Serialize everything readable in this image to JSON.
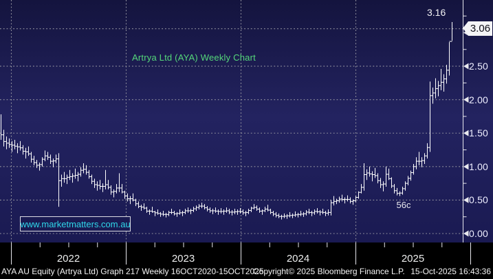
{
  "chart_data": {
    "type": "ohlc-bar",
    "title": "Artrya Ltd (AYA) Weekly Chart",
    "frequency": "Weekly",
    "x_axis": {
      "labels": [
        "2022",
        "2023",
        "2024",
        "2025"
      ],
      "grid": "dotted-vertical-at-year-start"
    },
    "y_axis": {
      "side": "right",
      "tick_labels": [
        "0.00",
        "0.50",
        "1.00",
        "1.50",
        "2.00",
        "2.50",
        "3.00"
      ],
      "minor_tick_step": 0.25,
      "range": [
        0.0,
        3.5
      ],
      "grid": "dotted-horizontal-at-major-ticks"
    },
    "last_price": 3.06,
    "high_value": 3.16,
    "low_annotation_value": 0.56,
    "bars_high_low": [
      [
        1.78,
        1.4
      ],
      [
        1.55,
        1.3
      ],
      [
        1.45,
        1.26
      ],
      [
        1.42,
        1.28
      ],
      [
        1.38,
        1.22
      ],
      [
        1.4,
        1.26
      ],
      [
        1.35,
        1.2
      ],
      [
        1.38,
        1.24
      ],
      [
        1.32,
        1.18
      ],
      [
        1.28,
        1.12
      ],
      [
        1.3,
        1.16
      ],
      [
        1.22,
        1.06
      ],
      [
        1.16,
        1.02
      ],
      [
        1.1,
        0.98
      ],
      [
        1.06,
        0.94
      ],
      [
        1.14,
        1.0
      ],
      [
        1.24,
        1.08
      ],
      [
        1.22,
        1.1
      ],
      [
        1.18,
        1.04
      ],
      [
        1.12,
        0.99
      ],
      [
        1.18,
        1.05
      ],
      [
        1.2,
        0.4
      ],
      [
        0.88,
        0.7
      ],
      [
        0.92,
        0.76
      ],
      [
        0.88,
        0.74
      ],
      [
        0.95,
        0.8
      ],
      [
        0.9,
        0.76
      ],
      [
        0.97,
        0.82
      ],
      [
        0.92,
        0.78
      ],
      [
        0.99,
        0.85
      ],
      [
        1.05,
        0.9
      ],
      [
        1.02,
        0.88
      ],
      [
        0.95,
        0.82
      ],
      [
        0.88,
        0.74
      ],
      [
        0.82,
        0.68
      ],
      [
        0.78,
        0.64
      ],
      [
        0.8,
        0.66
      ],
      [
        0.75,
        0.62
      ],
      [
        0.95,
        0.66
      ],
      [
        0.8,
        0.66
      ],
      [
        0.72,
        0.58
      ],
      [
        0.66,
        0.54
      ],
      [
        0.74,
        0.6
      ],
      [
        0.9,
        0.62
      ],
      [
        0.74,
        0.6
      ],
      [
        0.64,
        0.52
      ],
      [
        0.6,
        0.48
      ],
      [
        0.56,
        0.44
      ],
      [
        0.6,
        0.48
      ],
      [
        0.52,
        0.41
      ],
      [
        0.48,
        0.38
      ],
      [
        0.43,
        0.34
      ],
      [
        0.45,
        0.36
      ],
      [
        0.4,
        0.31
      ],
      [
        0.36,
        0.28
      ],
      [
        0.4,
        0.31
      ],
      [
        0.34,
        0.26
      ],
      [
        0.36,
        0.28
      ],
      [
        0.32,
        0.25
      ],
      [
        0.34,
        0.26
      ],
      [
        0.31,
        0.24
      ],
      [
        0.34,
        0.26
      ],
      [
        0.37,
        0.29
      ],
      [
        0.34,
        0.27
      ],
      [
        0.32,
        0.25
      ],
      [
        0.36,
        0.28
      ],
      [
        0.34,
        0.26
      ],
      [
        0.37,
        0.29
      ],
      [
        0.39,
        0.31
      ],
      [
        0.37,
        0.29
      ],
      [
        0.4,
        0.32
      ],
      [
        0.42,
        0.34
      ],
      [
        0.44,
        0.36
      ],
      [
        0.46,
        0.38
      ],
      [
        0.44,
        0.36
      ],
      [
        0.41,
        0.33
      ],
      [
        0.39,
        0.31
      ],
      [
        0.37,
        0.29
      ],
      [
        0.39,
        0.31
      ],
      [
        0.36,
        0.28
      ],
      [
        0.38,
        0.3
      ],
      [
        0.36,
        0.28
      ],
      [
        0.39,
        0.31
      ],
      [
        0.37,
        0.29
      ],
      [
        0.35,
        0.27
      ],
      [
        0.37,
        0.29
      ],
      [
        0.36,
        0.28
      ],
      [
        0.38,
        0.3
      ],
      [
        0.36,
        0.28
      ],
      [
        0.34,
        0.26
      ],
      [
        0.37,
        0.29
      ],
      [
        0.4,
        0.32
      ],
      [
        0.44,
        0.36
      ],
      [
        0.42,
        0.34
      ],
      [
        0.39,
        0.31
      ],
      [
        0.36,
        0.28
      ],
      [
        0.4,
        0.32
      ],
      [
        0.43,
        0.33
      ],
      [
        0.37,
        0.29
      ],
      [
        0.34,
        0.26
      ],
      [
        0.32,
        0.24
      ],
      [
        0.3,
        0.23
      ],
      [
        0.28,
        0.21
      ],
      [
        0.3,
        0.23
      ],
      [
        0.29,
        0.22
      ],
      [
        0.32,
        0.24
      ],
      [
        0.3,
        0.23
      ],
      [
        0.33,
        0.25
      ],
      [
        0.31,
        0.24
      ],
      [
        0.34,
        0.26
      ],
      [
        0.32,
        0.25
      ],
      [
        0.35,
        0.27
      ],
      [
        0.37,
        0.29
      ],
      [
        0.34,
        0.26
      ],
      [
        0.36,
        0.28
      ],
      [
        0.38,
        0.3
      ],
      [
        0.35,
        0.27
      ],
      [
        0.37,
        0.29
      ],
      [
        0.34,
        0.26
      ],
      [
        0.36,
        0.27
      ],
      [
        0.5,
        0.27
      ],
      [
        0.56,
        0.42
      ],
      [
        0.52,
        0.44
      ],
      [
        0.55,
        0.46
      ],
      [
        0.58,
        0.48
      ],
      [
        0.54,
        0.45
      ],
      [
        0.57,
        0.48
      ],
      [
        0.54,
        0.45
      ],
      [
        0.51,
        0.43
      ],
      [
        0.56,
        0.47
      ],
      [
        0.63,
        0.52
      ],
      [
        0.74,
        0.6
      ],
      [
        1.05,
        0.64
      ],
      [
        0.96,
        0.8
      ],
      [
        1.0,
        0.85
      ],
      [
        0.93,
        0.78
      ],
      [
        0.98,
        0.83
      ],
      [
        0.9,
        0.75
      ],
      [
        0.83,
        0.68
      ],
      [
        0.78,
        0.63
      ],
      [
        1.0,
        0.7
      ],
      [
        0.97,
        0.8
      ],
      [
        0.84,
        0.68
      ],
      [
        0.74,
        0.6
      ],
      [
        0.68,
        0.57
      ],
      [
        0.63,
        0.56
      ],
      [
        0.7,
        0.58
      ],
      [
        0.78,
        0.64
      ],
      [
        0.86,
        0.72
      ],
      [
        0.94,
        0.79
      ],
      [
        1.04,
        0.88
      ],
      [
        1.14,
        0.96
      ],
      [
        1.22,
        1.02
      ],
      [
        1.14,
        0.99
      ],
      [
        1.2,
        1.04
      ],
      [
        1.35,
        1.12
      ],
      [
        2.27,
        1.22
      ],
      [
        2.18,
        1.94
      ],
      [
        2.32,
        2.02
      ],
      [
        2.28,
        2.05
      ],
      [
        2.46,
        2.14
      ],
      [
        2.38,
        2.12
      ],
      [
        2.52,
        2.24
      ],
      [
        2.86,
        2.36
      ],
      [
        3.16,
        2.88
      ]
    ]
  },
  "annotations": {
    "high": "3.16",
    "low": "56c",
    "last_price_flag": "3.06"
  },
  "watermark": {
    "text": "www.marketmatters.com.au",
    "color": "#2fd8ea"
  },
  "status_bar": {
    "left": "AYA AU Equity (Artrya Ltd) Graph 217 Weekly 16OCT2020-15OCT2025",
    "copyright": "Copyright© 2025 Bloomberg Finance L.P.",
    "datetime": "15-Oct-2025 16:43:36"
  },
  "colors": {
    "plot_background": "#1a1a52",
    "plot_background_dark": "#14143e",
    "plot_background_light": "#232360",
    "frame_background": "#000000",
    "grid": "#93939f",
    "bars": "#ffffff",
    "axis": "#e8e8ee",
    "title_green": "#55d87a",
    "watermark_cyan": "#2fd8ea",
    "flag_background": "#f4f4f6",
    "flag_text": "#0b0b14",
    "label_text": "#eeeeff"
  }
}
